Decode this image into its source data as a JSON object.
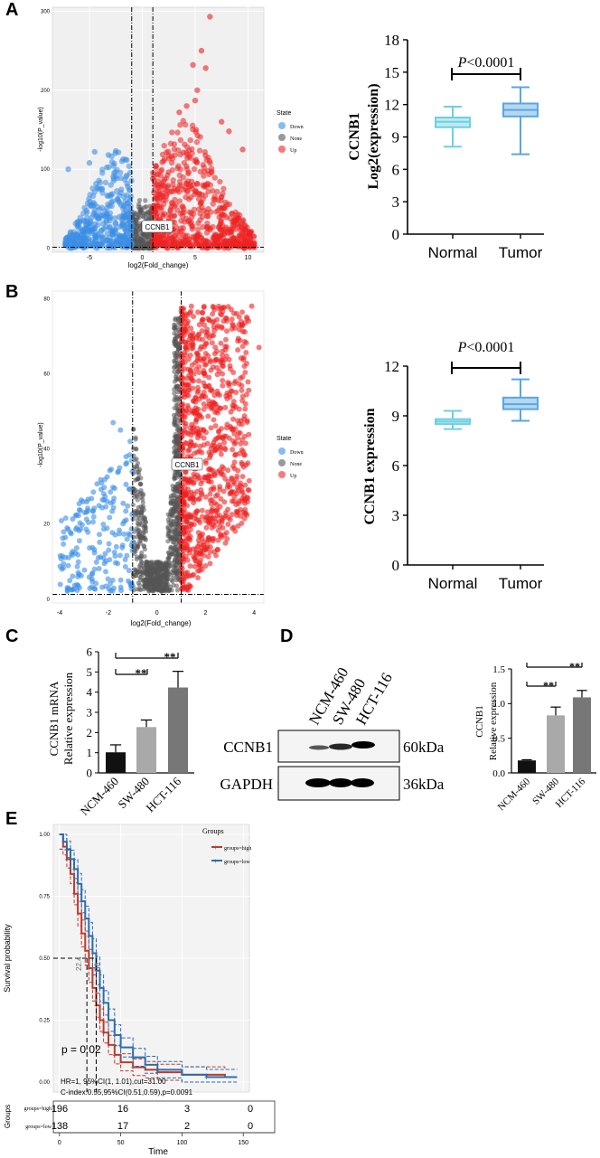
{
  "panel_labels": {
    "A": "A",
    "B": "B",
    "C": "C",
    "D": "D",
    "E": "E"
  },
  "colors": {
    "down": "#3a8ee6",
    "none": "#555555",
    "up": "#ee2222",
    "normal_box": "#6ed0e0",
    "tumor_box": "#5aa6e0",
    "high": "#c0392b",
    "low": "#2b6cb0"
  },
  "chart_data": [
    {
      "id": "A_volcano",
      "type": "scatter",
      "xlabel": "log2(Fold_change)",
      "ylabel": "-log10(P_value)",
      "xlim": [
        -8.5,
        11.5
      ],
      "ylim": [
        -5,
        305
      ],
      "xticks": [
        -5,
        0,
        5,
        10
      ],
      "yticks": [
        0,
        100,
        200,
        300
      ],
      "thresholds": {
        "x": [
          -1,
          1
        ],
        "y": 1.3
      },
      "legend": {
        "title": "State",
        "entries": [
          "Down",
          "None",
          "Up"
        ]
      },
      "annotation": "CCNB1"
    },
    {
      "id": "A_box",
      "type": "box",
      "ylabel_line1": "CCNB1",
      "ylabel_line2": "Log2(expression)",
      "ylim": [
        0,
        18
      ],
      "yticks": [
        0,
        3,
        6,
        9,
        12,
        15,
        18
      ],
      "categories": [
        "Normal",
        "Tumor"
      ],
      "series": [
        {
          "name": "Normal",
          "min": 8.1,
          "q1": 9.9,
          "median": 10.4,
          "q3": 10.8,
          "max": 11.8
        },
        {
          "name": "Tumor",
          "min": 7.4,
          "q1": 10.9,
          "median": 11.5,
          "q3": 12.1,
          "max": 13.6
        }
      ],
      "sig_italic": "P",
      "sig_text": "<0.0001"
    },
    {
      "id": "B_volcano",
      "type": "scatter",
      "xlabel": "log2(Fold_change)",
      "ylabel": "-log10(P_value)",
      "xlim": [
        -4.3,
        4.4
      ],
      "ylim": [
        -1,
        82
      ],
      "xticks": [
        -4,
        -2,
        0,
        2,
        4
      ],
      "yticks": [
        0,
        20,
        40,
        60,
        80
      ],
      "thresholds": {
        "x": [
          -1,
          1
        ],
        "y": 1.3
      },
      "legend": {
        "title": "State",
        "entries": [
          "Down",
          "None",
          "Up"
        ]
      },
      "annotation": "CCNB1"
    },
    {
      "id": "B_box",
      "type": "box",
      "ylabel": "CCNB1 expression",
      "ylim": [
        0,
        12
      ],
      "yticks": [
        0,
        3,
        6,
        9,
        12
      ],
      "categories": [
        "Normal",
        "Tumor"
      ],
      "series": [
        {
          "name": "Normal",
          "min": 8.2,
          "q1": 8.5,
          "median": 8.65,
          "q3": 8.8,
          "max": 9.3
        },
        {
          "name": "Tumor",
          "min": 8.7,
          "q1": 9.4,
          "median": 9.7,
          "q3": 10.1,
          "max": 11.2
        }
      ],
      "sig_italic": "P",
      "sig_text": "<0.0001"
    },
    {
      "id": "C_bar",
      "type": "bar",
      "ylabel_line1": "CCNB1 mRNA",
      "ylabel_line2": "Relative expression",
      "ylim": [
        0,
        6
      ],
      "yticks": [
        0,
        1,
        2,
        3,
        4,
        5,
        6
      ],
      "categories": [
        "NCM-460",
        "SW-480",
        "HCT-116"
      ],
      "values": [
        1.02,
        2.27,
        4.23
      ],
      "errors": [
        0.37,
        0.35,
        0.8
      ],
      "bar_colors": [
        "#111111",
        "#a9a9a9",
        "#777777"
      ],
      "sig": [
        "**",
        "**"
      ]
    },
    {
      "id": "D_bar",
      "type": "bar",
      "ylabel_line1": "CCNB1",
      "ylabel_line2": "Relative expression",
      "ylim": [
        0,
        1.5
      ],
      "yticks": [
        0.0,
        0.5,
        1.0,
        1.5
      ],
      "yticklabels": [
        "0.0",
        "0.5",
        "1.0",
        "1.5"
      ],
      "categories": [
        "NCM-460",
        "SW-480",
        "HCT-116"
      ],
      "values": [
        0.18,
        0.83,
        1.09
      ],
      "errors": [
        0.01,
        0.12,
        0.1
      ],
      "bar_colors": [
        "#111111",
        "#a9a9a9",
        "#777777"
      ],
      "sig": [
        "**",
        "**"
      ]
    },
    {
      "id": "E_km",
      "type": "line",
      "xlabel": "Time",
      "ylabel": "Survival probability",
      "xlim": [
        -5,
        155
      ],
      "ylim": [
        -0.04,
        1.04
      ],
      "xticks": [
        0,
        50,
        100,
        150
      ],
      "yticks": [
        0.0,
        0.25,
        0.5,
        0.75,
        1.0
      ],
      "yticklabels": [
        "0.00",
        "0.25",
        "0.50",
        "0.75",
        "1.00"
      ],
      "legend": {
        "title": "Groups",
        "entries": [
          "groups=high",
          "groups=low"
        ]
      },
      "series": [
        {
          "name": "groups=high",
          "x": [
            0,
            3,
            6,
            9,
            12,
            15,
            18,
            21,
            24,
            27,
            30,
            33,
            36,
            40,
            45,
            50,
            60,
            70,
            80,
            100,
            120,
            135
          ],
          "y": [
            1.0,
            0.95,
            0.9,
            0.84,
            0.76,
            0.68,
            0.6,
            0.53,
            0.46,
            0.38,
            0.31,
            0.25,
            0.2,
            0.15,
            0.11,
            0.08,
            0.06,
            0.05,
            0.04,
            0.03,
            0.03,
            0.02
          ]
        },
        {
          "name": "groups=low",
          "x": [
            0,
            3,
            6,
            9,
            12,
            15,
            18,
            21,
            24,
            27,
            30,
            33,
            36,
            40,
            45,
            50,
            60,
            70,
            80,
            100,
            120,
            145
          ],
          "y": [
            1.0,
            0.97,
            0.94,
            0.9,
            0.86,
            0.8,
            0.73,
            0.66,
            0.59,
            0.52,
            0.45,
            0.38,
            0.32,
            0.25,
            0.19,
            0.14,
            0.1,
            0.07,
            0.05,
            0.03,
            0.02,
            0.02
          ]
        }
      ],
      "median_marker": 0.5,
      "median_times": [
        22.4,
        30
      ],
      "median_labels": [
        "22.4",
        "30"
      ],
      "p_text": "p = 0.02",
      "hr_text": "HR=1, 95%CI(1, 1.01),cut=31.00",
      "cindex_text": "C-index:0.55,95%CI(0.51,0.59),p=0.0091",
      "risk_table": {
        "title": "Groups",
        "rows": [
          {
            "label": "groups=high",
            "values": [
              "196",
              "16",
              "3",
              "0"
            ]
          },
          {
            "label": "groups=low",
            "values": [
              "138",
              "17",
              "2",
              "0"
            ]
          }
        ]
      }
    }
  ],
  "western_blot": {
    "lanes": [
      "NCM-460",
      "SW-480",
      "HCT-116"
    ],
    "rows": [
      {
        "label": "CCNB1",
        "size": "60kDa"
      },
      {
        "label": "GAPDH",
        "size": "36kDa"
      }
    ]
  }
}
